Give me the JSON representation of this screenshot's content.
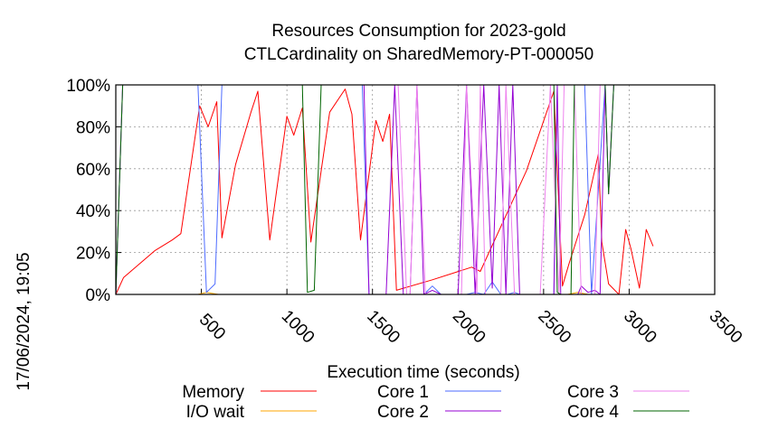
{
  "chart_data": {
    "type": "line",
    "title": "Resources Consumption for 2023-gold",
    "subtitle": "CTLCardinality on SharedMemory-PT-000050",
    "xlabel": "Execution time (seconds)",
    "ylabel": "",
    "xlim": [
      0,
      3500
    ],
    "ylim": [
      0,
      100
    ],
    "x_ticks": [
      "500",
      "1000",
      "1500",
      "2000",
      "2500",
      "3000",
      "3500"
    ],
    "y_ticks": [
      "0%",
      "20%",
      "40%",
      "60%",
      "80%",
      "100%"
    ],
    "grid": true,
    "side_label": "17/06/2024, 19:05",
    "series": [
      {
        "name": "Memory",
        "color": "#ff0000",
        "points": [
          [
            0,
            0
          ],
          [
            45,
            8
          ],
          [
            130,
            14
          ],
          [
            230,
            21
          ],
          [
            330,
            26
          ],
          [
            380,
            29
          ],
          [
            490,
            90
          ],
          [
            540,
            80
          ],
          [
            590,
            92
          ],
          [
            620,
            27
          ],
          [
            700,
            62
          ],
          [
            790,
            87
          ],
          [
            830,
            97
          ],
          [
            900,
            26
          ],
          [
            1000,
            85
          ],
          [
            1040,
            76
          ],
          [
            1090,
            89
          ],
          [
            1140,
            25
          ],
          [
            1250,
            87
          ],
          [
            1340,
            98
          ],
          [
            1380,
            86
          ],
          [
            1430,
            26
          ],
          [
            1520,
            83
          ],
          [
            1560,
            73
          ],
          [
            1600,
            86
          ],
          [
            1640,
            2
          ],
          [
            1850,
            7
          ],
          [
            2080,
            13
          ],
          [
            2130,
            11
          ],
          [
            2400,
            59
          ],
          [
            2560,
            97
          ],
          [
            2610,
            4
          ],
          [
            2650,
            15
          ],
          [
            2740,
            38
          ],
          [
            2820,
            67
          ],
          [
            2840,
            25
          ],
          [
            2880,
            5
          ],
          [
            2940,
            0
          ],
          [
            2980,
            31
          ],
          [
            3010,
            22
          ],
          [
            3060,
            3
          ],
          [
            3100,
            31
          ],
          [
            3140,
            23
          ]
        ]
      },
      {
        "name": "I/O wait",
        "color": "#ffa500",
        "points": [
          [
            0,
            0
          ],
          [
            480,
            0
          ],
          [
            530,
            1
          ],
          [
            600,
            0
          ],
          [
            2640,
            0
          ],
          [
            2700,
            1
          ],
          [
            2760,
            0
          ],
          [
            3140,
            0
          ]
        ]
      },
      {
        "name": "Core 1",
        "color": "#4d6bff",
        "points": [
          [
            0,
            0
          ],
          [
            40,
            100
          ],
          [
            480,
            100
          ],
          [
            530,
            1
          ],
          [
            580,
            5
          ],
          [
            620,
            100
          ],
          [
            1440,
            100
          ],
          [
            1480,
            0
          ],
          [
            1640,
            0
          ],
          [
            1800,
            0
          ],
          [
            1850,
            4
          ],
          [
            1900,
            0
          ],
          [
            2050,
            0
          ],
          [
            2100,
            1
          ],
          [
            2150,
            0
          ],
          [
            2200,
            6
          ],
          [
            2250,
            0
          ],
          [
            2290,
            0
          ],
          [
            2330,
            1
          ],
          [
            2360,
            0
          ],
          [
            2560,
            0
          ],
          [
            2580,
            100
          ],
          [
            2740,
            100
          ],
          [
            2780,
            0
          ],
          [
            2860,
            100
          ],
          [
            2880,
            48
          ],
          [
            2910,
            100
          ],
          [
            3140,
            100
          ]
        ]
      },
      {
        "name": "Core 2",
        "color": "#9400d3",
        "points": [
          [
            0,
            0
          ],
          [
            40,
            100
          ],
          [
            1450,
            100
          ],
          [
            1480,
            0
          ],
          [
            1580,
            0
          ],
          [
            1630,
            100
          ],
          [
            1680,
            0
          ],
          [
            1720,
            0
          ],
          [
            1760,
            100
          ],
          [
            1800,
            0
          ],
          [
            1850,
            2
          ],
          [
            1900,
            0
          ],
          [
            2000,
            0
          ],
          [
            2050,
            100
          ],
          [
            2100,
            0
          ],
          [
            2150,
            100
          ],
          [
            2200,
            3
          ],
          [
            2240,
            100
          ],
          [
            2280,
            0
          ],
          [
            2320,
            100
          ],
          [
            2360,
            0
          ],
          [
            2560,
            0
          ],
          [
            2580,
            100
          ],
          [
            2600,
            0
          ],
          [
            2700,
            0
          ],
          [
            2720,
            4
          ],
          [
            2760,
            1
          ],
          [
            2800,
            2
          ],
          [
            2830,
            0
          ],
          [
            2860,
            100
          ],
          [
            2880,
            48
          ],
          [
            2910,
            100
          ],
          [
            3140,
            100
          ]
        ]
      },
      {
        "name": "Core 3",
        "color": "#ee82ee",
        "points": [
          [
            0,
            0
          ],
          [
            40,
            100
          ],
          [
            1650,
            100
          ],
          [
            1700,
            0
          ],
          [
            1720,
            0
          ],
          [
            1760,
            100
          ],
          [
            1810,
            0
          ],
          [
            2020,
            0
          ],
          [
            2050,
            100
          ],
          [
            2110,
            0
          ],
          [
            2130,
            100
          ],
          [
            2160,
            0
          ],
          [
            2250,
            0
          ],
          [
            2280,
            100
          ],
          [
            2330,
            0
          ],
          [
            2480,
            0
          ],
          [
            2540,
            100
          ],
          [
            2590,
            0
          ],
          [
            2620,
            100
          ],
          [
            2680,
            100
          ],
          [
            2720,
            0
          ],
          [
            2800,
            0
          ],
          [
            2830,
            100
          ],
          [
            2860,
            100
          ],
          [
            2880,
            48
          ],
          [
            2910,
            100
          ],
          [
            3140,
            100
          ]
        ]
      },
      {
        "name": "Core 4",
        "color": "#006400",
        "points": [
          [
            0,
            0
          ],
          [
            40,
            100
          ],
          [
            1090,
            100
          ],
          [
            1120,
            1
          ],
          [
            1160,
            2
          ],
          [
            1200,
            100
          ],
          [
            2560,
            100
          ],
          [
            2580,
            1
          ],
          [
            2600,
            0
          ],
          [
            2660,
            0
          ],
          [
            2680,
            100
          ],
          [
            2860,
            100
          ],
          [
            2880,
            48
          ],
          [
            2910,
            100
          ],
          [
            3140,
            100
          ]
        ]
      }
    ]
  }
}
